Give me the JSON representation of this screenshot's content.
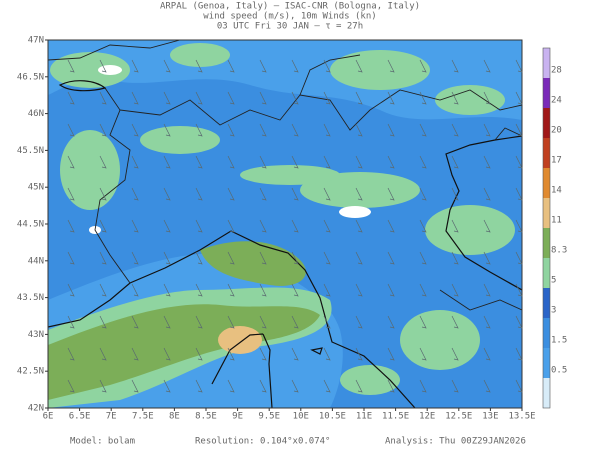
{
  "header": {
    "line1": "ARPAL (Genoa, Italy)  —  ISAC-CNR (Bologna, Italy)",
    "line2": "wind speed (m/s), 10m Winds (kn)",
    "line3": "03 UTC Fri 30 JAN  —  τ = 27h"
  },
  "map": {
    "x_ticks": [
      "6E",
      "6.5E",
      "7E",
      "7.5E",
      "8E",
      "8.5E",
      "9E",
      "9.5E",
      "10E",
      "10.5E",
      "11E",
      "11.5E",
      "12E",
      "12.5E",
      "13E",
      "13.5E"
    ],
    "y_ticks": [
      "47N",
      "46.5N",
      "46N",
      "45.5N",
      "45N",
      "44.5N",
      "44N",
      "43.5N",
      "43N",
      "42.5N",
      "42N"
    ]
  },
  "colorbar": {
    "labels": [
      "0.5",
      "1.5",
      "3",
      "5",
      "8.3",
      "11",
      "14",
      "17",
      "20",
      "24",
      "28"
    ]
  },
  "footer": {
    "model": "Model: bolam",
    "resolution": "Resolution: 0.104°x0.074°",
    "analysis": "Analysis: Thu 00Z29JAN2026"
  }
}
